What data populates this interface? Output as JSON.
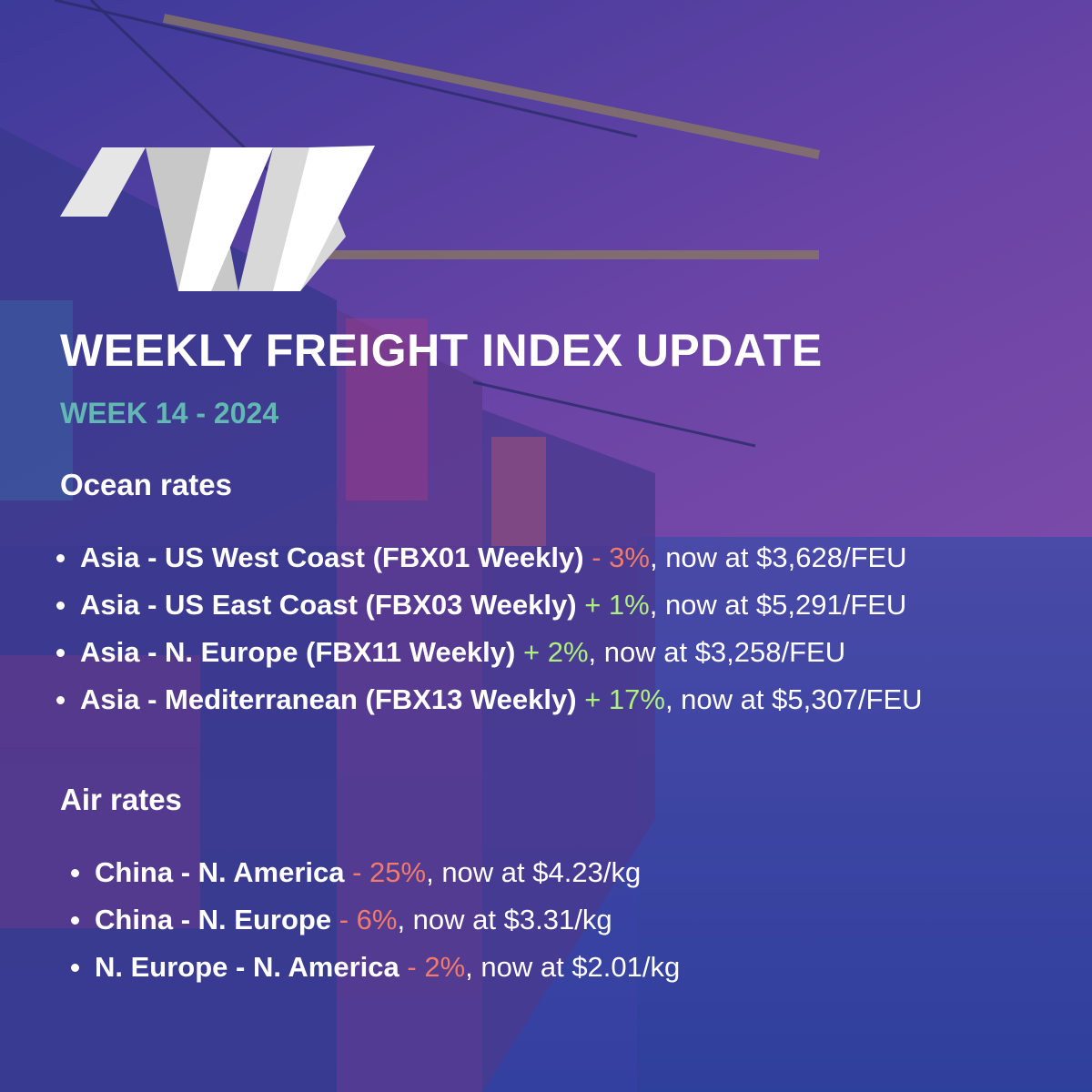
{
  "header": {
    "title": "WEEKLY FREIGHT INDEX UPDATE",
    "subtitle": "WEEK 14 - 2024"
  },
  "sections": [
    {
      "heading": "Ocean rates",
      "items": [
        {
          "route": "Asia - US West Coast (FBX01 Weekly)",
          "change": "- 3%",
          "rest": ", now at $3,628/FEU",
          "color": "#f07b6b"
        },
        {
          "route": "Asia - US East Coast (FBX03 Weekly)",
          "change": "+ 1%",
          "rest": ", now at $5,291/FEU",
          "color": "#aef07e"
        },
        {
          "route": "Asia - N. Europe (FBX11 Weekly)",
          "change": "+ 2%",
          "rest": ", now at $3,258/FEU",
          "color": "#aef07e"
        },
        {
          "route": "Asia - Mediterranean (FBX13 Weekly)",
          "change": "+ 17%",
          "rest": ", now at $5,307/FEU",
          "color": "#aef07e"
        }
      ]
    },
    {
      "heading": "Air rates",
      "items": [
        {
          "route": "China - N. America",
          "change": "- 25%",
          "rest": ", now at $4.23/kg",
          "color": "#f07b6b"
        },
        {
          "route": "China - N. Europe",
          "change": "- 6%",
          "rest": ", now at $3.31/kg",
          "color": "#f07b6b"
        },
        {
          "route": "N. Europe - N. America",
          "change": "- 2%",
          "rest": ", now at $2.01/kg",
          "color": "#f07b6b"
        }
      ]
    }
  ]
}
